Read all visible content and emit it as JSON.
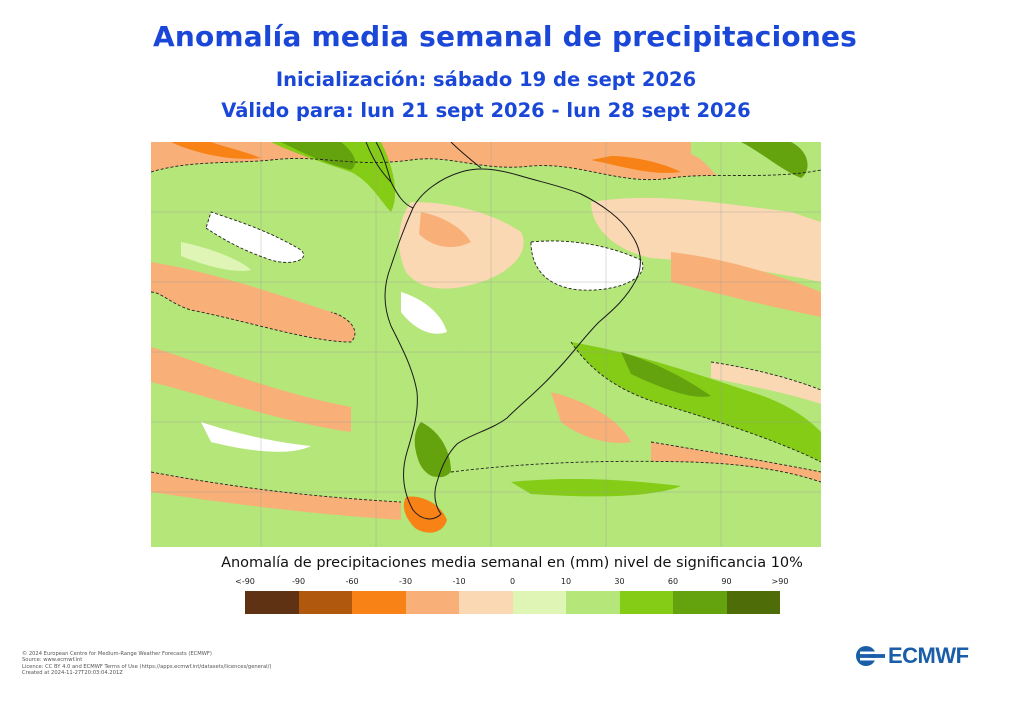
{
  "header": {
    "title": "Anomalía media semanal de precipitaciones",
    "init_line": "Inicialización: sábado 19 de sept 2026",
    "valid_line": "Válido para: lun 21 sept 2026 - lun 28 sept 2026"
  },
  "map": {
    "region": "South America and surrounding oceans",
    "significance_contour": "dashed"
  },
  "legend": {
    "title": "Anomalía de precipitaciones media semanal en (mm) nivel de significancia 10%",
    "ticks": [
      "<-90",
      "-90",
      "-60",
      "-30",
      "-10",
      "0",
      "10",
      "30",
      "60",
      "90",
      ">90"
    ],
    "colors": [
      "#5e3212",
      "#b0580e",
      "#f88216",
      "#f8b078",
      "#fbd8b4",
      "#def5b6",
      "#b4e67a",
      "#84cc16",
      "#64a20e",
      "#4e6c08"
    ]
  },
  "footer": {
    "credits": [
      "© 2024 European Centre for Medium-Range Weather Forecasts (ECMWF)",
      "Source: www.ecmwf.int",
      "Licence: CC BY 4.0 and ECMWF Terms of Use (https://apps.ecmwf.int/datasets/licences/general/)",
      "Created at 2024-11-27T20:03:04.201Z"
    ],
    "logo_text": "ECMWF"
  }
}
